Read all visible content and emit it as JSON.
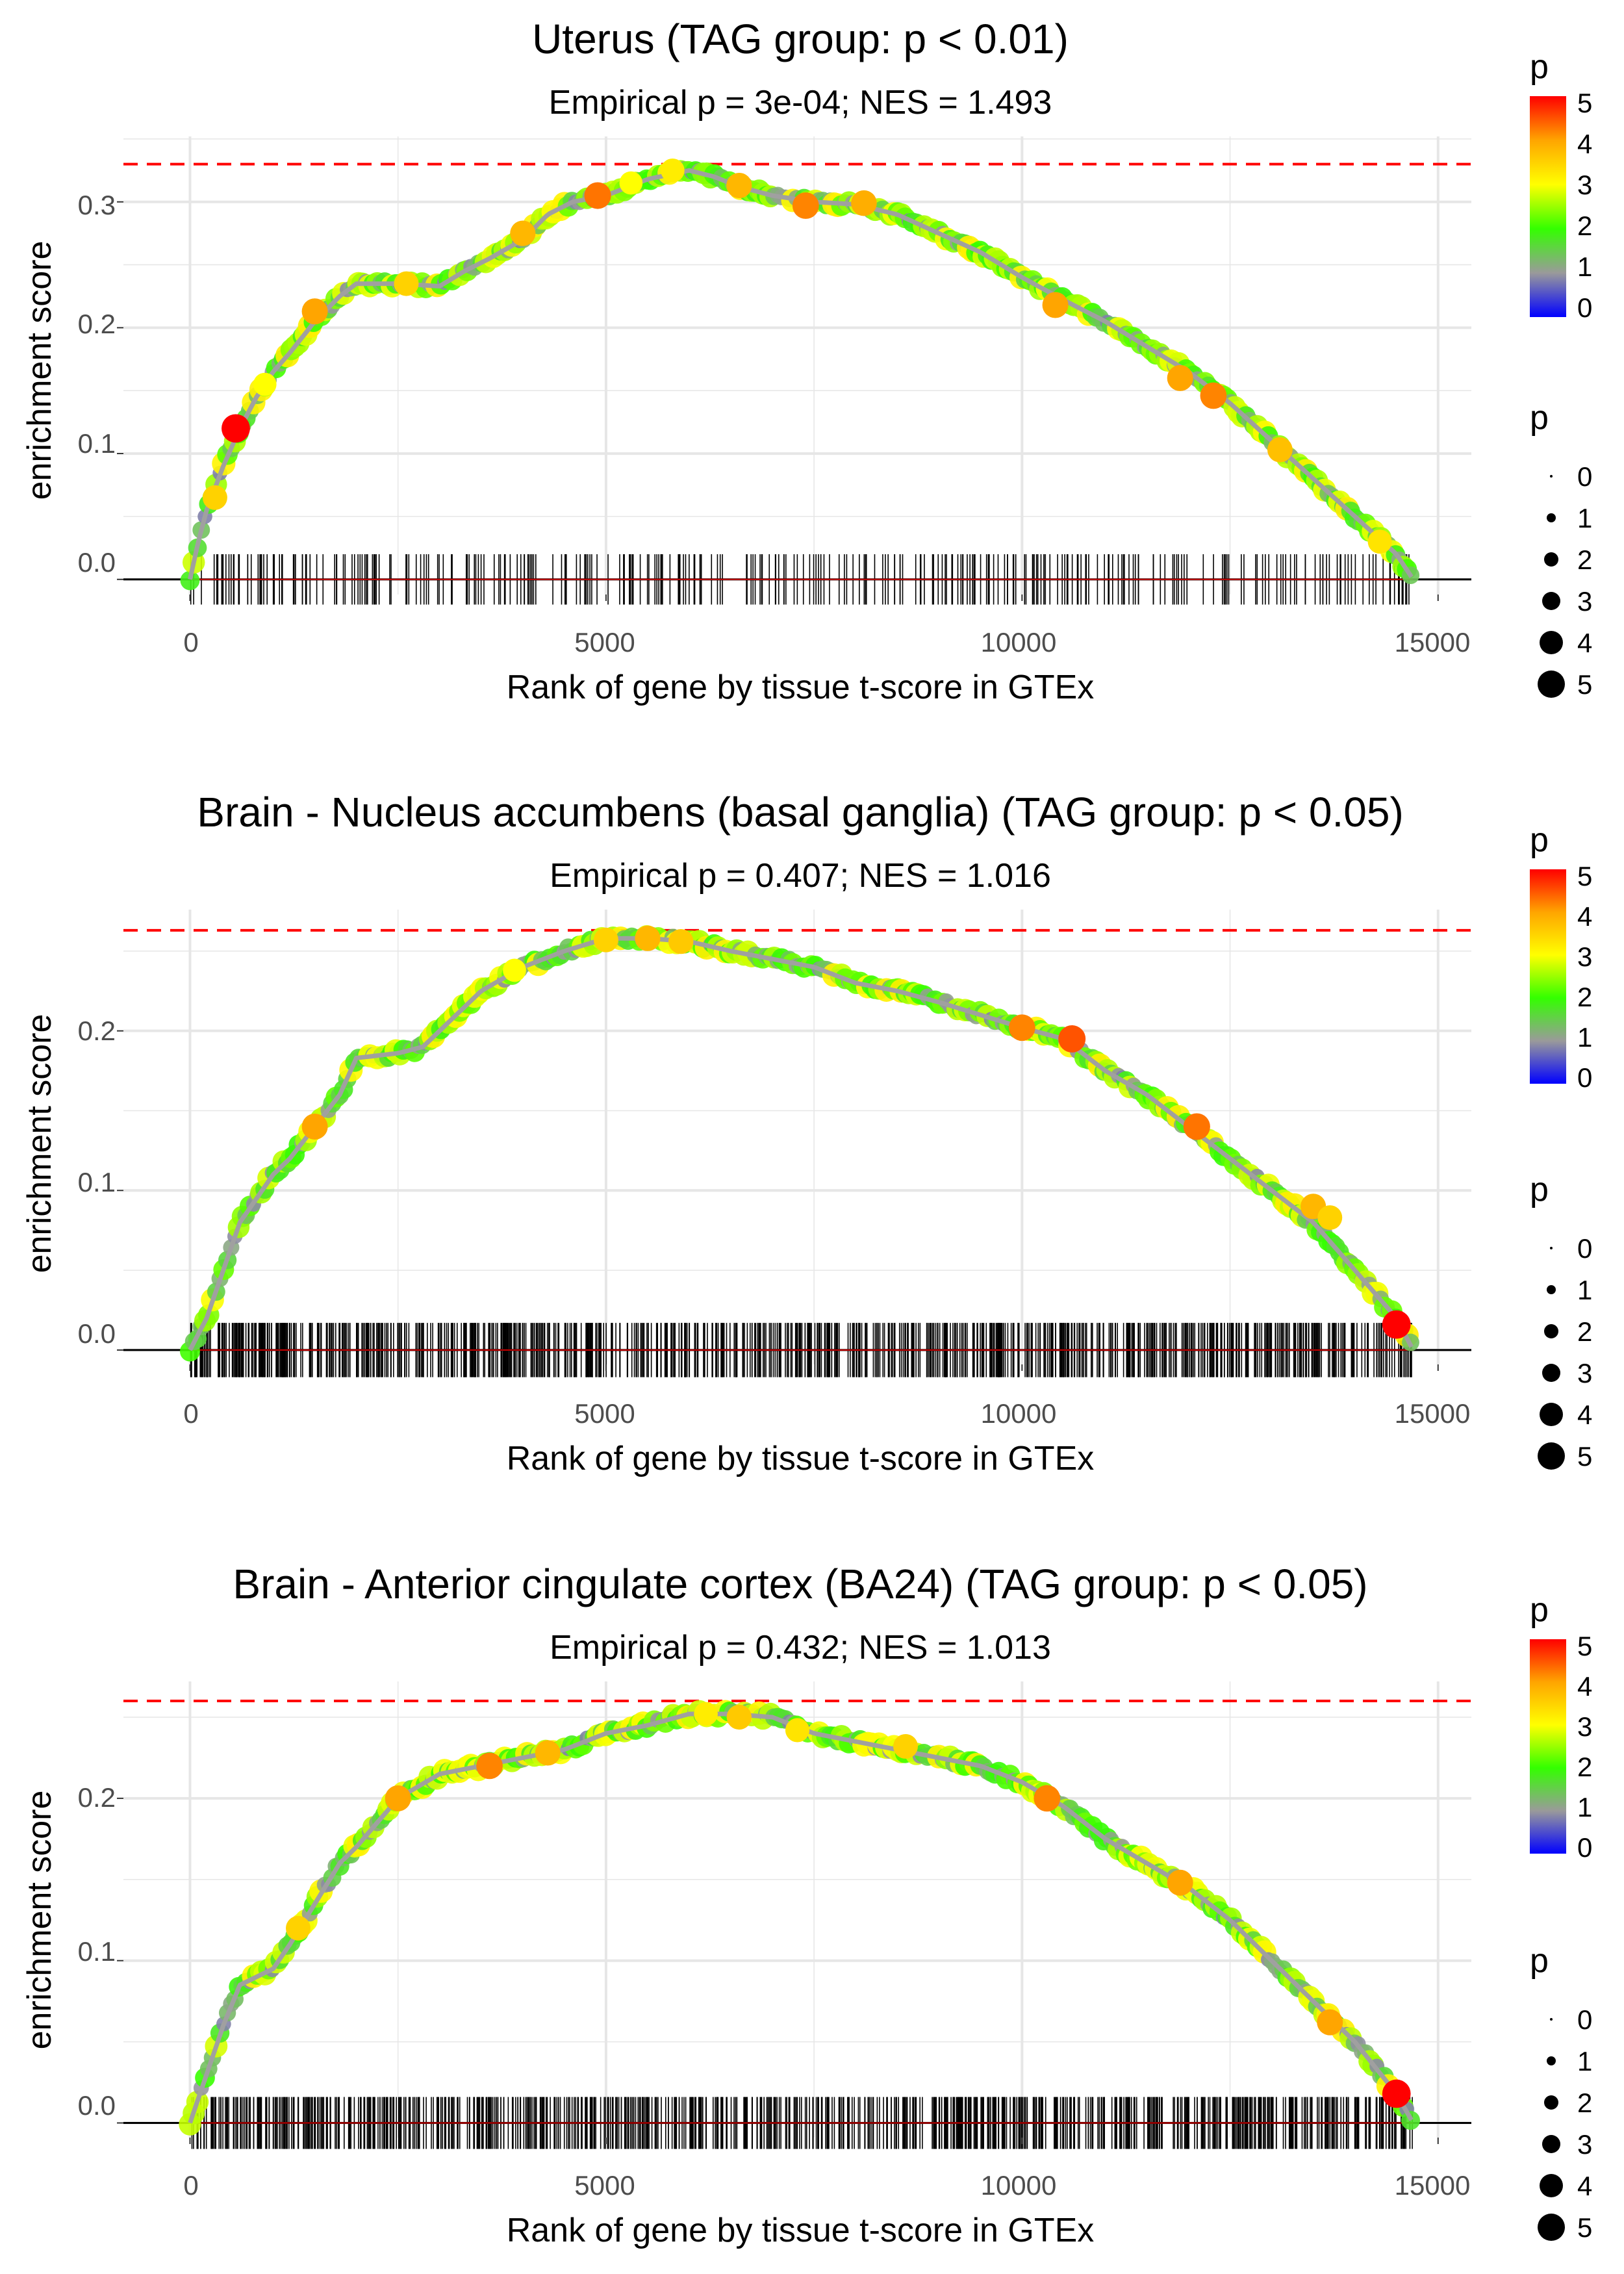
{
  "colors": {
    "grid": "#e6e6e6",
    "threshold_line": "#ff0000",
    "curve": "#a0a0a0",
    "rug": "#000000",
    "gradient_stops": [
      "#0000ff",
      "#9a9a9a",
      "#33ff00",
      "#ffff00",
      "#ffa500",
      "#ff0000"
    ]
  },
  "chart_data": [
    {
      "type": "line",
      "title": "Uterus (TAG group: p < 0.01)",
      "subtitle": "Empirical p = 3e-04; NES = 1.493",
      "xlabel": "Rank of gene by tissue t-score in GTEx",
      "ylabel": "enrichment score",
      "xlim": [
        -800,
        15400
      ],
      "ylim": [
        -0.012,
        0.352
      ],
      "x_ticks": [
        0,
        5000,
        10000,
        15000
      ],
      "x_tick_labels": [
        "0",
        "5000",
        "10000",
        "15000"
      ],
      "y_ticks": [
        0.0,
        0.1,
        0.2,
        0.3
      ],
      "y_tick_labels": [
        "0.0",
        "0.1",
        "0.2",
        "0.3"
      ],
      "threshold": 0.33,
      "rug_band": [
        -0.02,
        0.02
      ],
      "rug_count": 330,
      "rug_seed": 11,
      "x_max": 14700,
      "curve": {
        "x": [
          0,
          100,
          200,
          400,
          600,
          800,
          1000,
          1200,
          1500,
          1800,
          2000,
          2500,
          3000,
          3300,
          3600,
          4000,
          4300,
          4600,
          5000,
          5500,
          6000,
          6300,
          6600,
          7000,
          7500,
          8000,
          8500,
          9000,
          9500,
          10000,
          10500,
          11000,
          11500,
          12000,
          12500,
          13000,
          13500,
          14000,
          14500,
          14700
        ],
        "y": [
          0.0,
          0.03,
          0.055,
          0.09,
          0.12,
          0.145,
          0.165,
          0.18,
          0.205,
          0.225,
          0.235,
          0.235,
          0.233,
          0.245,
          0.255,
          0.27,
          0.29,
          0.3,
          0.305,
          0.318,
          0.325,
          0.32,
          0.312,
          0.305,
          0.3,
          0.298,
          0.29,
          0.275,
          0.26,
          0.24,
          0.222,
          0.205,
          0.185,
          0.165,
          0.14,
          0.11,
          0.08,
          0.05,
          0.02,
          0.0
        ]
      },
      "highlight_points": [
        {
          "x": 300,
          "y": 0.065,
          "p": 3.5
        },
        {
          "x": 550,
          "y": 0.12,
          "p": 5.0
        },
        {
          "x": 900,
          "y": 0.155,
          "p": 3.0
        },
        {
          "x": 1500,
          "y": 0.213,
          "p": 4.0
        },
        {
          "x": 2600,
          "y": 0.235,
          "p": 3.5
        },
        {
          "x": 4000,
          "y": 0.275,
          "p": 3.8
        },
        {
          "x": 4900,
          "y": 0.305,
          "p": 4.3
        },
        {
          "x": 5300,
          "y": 0.315,
          "p": 3.0
        },
        {
          "x": 5800,
          "y": 0.325,
          "p": 3.2
        },
        {
          "x": 6600,
          "y": 0.313,
          "p": 3.8
        },
        {
          "x": 7400,
          "y": 0.297,
          "p": 4.2
        },
        {
          "x": 8100,
          "y": 0.299,
          "p": 3.9
        },
        {
          "x": 10400,
          "y": 0.218,
          "p": 4.0
        },
        {
          "x": 11900,
          "y": 0.16,
          "p": 4.0
        },
        {
          "x": 12300,
          "y": 0.146,
          "p": 4.2
        },
        {
          "x": 13100,
          "y": 0.103,
          "p": 3.7
        },
        {
          "x": 14300,
          "y": 0.03,
          "p": 3.3
        }
      ],
      "legend_color": {
        "title": "p",
        "labels": [
          "0",
          "1",
          "2",
          "3",
          "4",
          "5"
        ]
      },
      "legend_size": {
        "title": "p",
        "labels": [
          "0",
          "1",
          "2",
          "3",
          "4",
          "5"
        ]
      }
    },
    {
      "type": "line",
      "title": "Brain - Nucleus accumbens (basal ganglia) (TAG group: p < 0.05)",
      "subtitle": "Empirical p = 0.407; NES = 1.016",
      "xlabel": "Rank of gene by tissue t-score in GTEx",
      "ylabel": "enrichment score",
      "xlim": [
        -800,
        15400
      ],
      "ylim": [
        -0.009,
        0.276
      ],
      "x_ticks": [
        0,
        5000,
        10000,
        15000
      ],
      "x_tick_labels": [
        "0",
        "5000",
        "10000",
        "15000"
      ],
      "y_ticks": [
        0.0,
        0.1,
        0.2
      ],
      "y_tick_labels": [
        "0.0",
        "0.1",
        "0.2"
      ],
      "threshold": 0.263,
      "rug_band": [
        -0.017,
        0.017
      ],
      "rug_count": 900,
      "rug_seed": 23,
      "x_max": 14700,
      "curve": {
        "x": [
          0,
          200,
          400,
          600,
          800,
          1000,
          1200,
          1500,
          1800,
          2000,
          2500,
          2800,
          3000,
          3500,
          4000,
          4500,
          5000,
          5500,
          6000,
          6500,
          7000,
          7500,
          8000,
          8500,
          9000,
          9500,
          10000,
          10500,
          11000,
          11500,
          12000,
          12500,
          13000,
          13500,
          14000,
          14500,
          14700
        ],
        "y": [
          0.0,
          0.02,
          0.05,
          0.08,
          0.095,
          0.11,
          0.12,
          0.14,
          0.16,
          0.183,
          0.186,
          0.19,
          0.2,
          0.225,
          0.24,
          0.25,
          0.258,
          0.258,
          0.256,
          0.25,
          0.245,
          0.24,
          0.23,
          0.225,
          0.218,
          0.21,
          0.202,
          0.195,
          0.175,
          0.16,
          0.14,
          0.12,
          0.1,
          0.08,
          0.05,
          0.02,
          0.0
        ]
      },
      "highlight_points": [
        {
          "x": 1500,
          "y": 0.14,
          "p": 4.0
        },
        {
          "x": 3900,
          "y": 0.238,
          "p": 3.0
        },
        {
          "x": 5000,
          "y": 0.257,
          "p": 3.5
        },
        {
          "x": 5500,
          "y": 0.258,
          "p": 3.8
        },
        {
          "x": 5900,
          "y": 0.256,
          "p": 3.6
        },
        {
          "x": 10000,
          "y": 0.202,
          "p": 4.2
        },
        {
          "x": 10600,
          "y": 0.195,
          "p": 4.5
        },
        {
          "x": 12100,
          "y": 0.14,
          "p": 4.3
        },
        {
          "x": 13500,
          "y": 0.09,
          "p": 3.8
        },
        {
          "x": 13700,
          "y": 0.083,
          "p": 3.5
        },
        {
          "x": 14500,
          "y": 0.016,
          "p": 5.0
        }
      ],
      "legend_color": {
        "title": "p",
        "labels": [
          "0",
          "1",
          "2",
          "3",
          "4",
          "5"
        ]
      },
      "legend_size": {
        "title": "p",
        "labels": [
          "0",
          "1",
          "2",
          "3",
          "4",
          "5"
        ]
      }
    },
    {
      "type": "line",
      "title": "Brain - Anterior cingulate cortex (BA24) (TAG group: p < 0.05)",
      "subtitle": "Empirical p = 0.432; NES = 1.013",
      "xlabel": "Rank of gene by tissue t-score in GTEx",
      "ylabel": "enrichment score",
      "xlim": [
        -800,
        15400
      ],
      "ylim": [
        -0.009,
        0.272
      ],
      "x_ticks": [
        0,
        5000,
        10000,
        15000
      ],
      "x_tick_labels": [
        "0",
        "5000",
        "10000",
        "15000"
      ],
      "y_ticks": [
        0.0,
        0.1,
        0.2
      ],
      "y_tick_labels": [
        "0.0",
        "0.1",
        "0.2"
      ],
      "threshold": 0.26,
      "rug_band": [
        -0.016,
        0.016
      ],
      "rug_count": 880,
      "rug_seed": 37,
      "x_max": 14700,
      "curve": {
        "x": [
          0,
          200,
          400,
          600,
          800,
          1000,
          1200,
          1500,
          1800,
          2000,
          2500,
          3000,
          3500,
          4000,
          4500,
          5000,
          5500,
          6000,
          6500,
          7000,
          7500,
          8000,
          8500,
          9000,
          9500,
          10000,
          10500,
          11000,
          11500,
          12000,
          12500,
          13000,
          13500,
          14000,
          14500,
          14700
        ],
        "y": [
          0.0,
          0.03,
          0.06,
          0.085,
          0.09,
          0.095,
          0.11,
          0.135,
          0.16,
          0.17,
          0.2,
          0.215,
          0.22,
          0.225,
          0.23,
          0.24,
          0.245,
          0.252,
          0.252,
          0.25,
          0.24,
          0.235,
          0.23,
          0.225,
          0.22,
          0.21,
          0.195,
          0.175,
          0.16,
          0.145,
          0.125,
          0.1,
          0.075,
          0.05,
          0.018,
          0.0
        ]
      },
      "highlight_points": [
        {
          "x": 1300,
          "y": 0.12,
          "p": 3.5
        },
        {
          "x": 2500,
          "y": 0.2,
          "p": 4.0
        },
        {
          "x": 3600,
          "y": 0.22,
          "p": 4.2
        },
        {
          "x": 4300,
          "y": 0.228,
          "p": 3.8
        },
        {
          "x": 6200,
          "y": 0.252,
          "p": 3.2
        },
        {
          "x": 6600,
          "y": 0.25,
          "p": 3.6
        },
        {
          "x": 7300,
          "y": 0.242,
          "p": 3.3
        },
        {
          "x": 8600,
          "y": 0.232,
          "p": 3.5
        },
        {
          "x": 10300,
          "y": 0.2,
          "p": 4.2
        },
        {
          "x": 11900,
          "y": 0.148,
          "p": 4.0
        },
        {
          "x": 13700,
          "y": 0.062,
          "p": 4.0
        },
        {
          "x": 14500,
          "y": 0.018,
          "p": 5.0
        }
      ],
      "legend_color": {
        "title": "p",
        "labels": [
          "0",
          "1",
          "2",
          "3",
          "4",
          "5"
        ]
      },
      "legend_size": {
        "title": "p",
        "labels": [
          "0",
          "1",
          "2",
          "3",
          "4",
          "5"
        ]
      }
    }
  ]
}
